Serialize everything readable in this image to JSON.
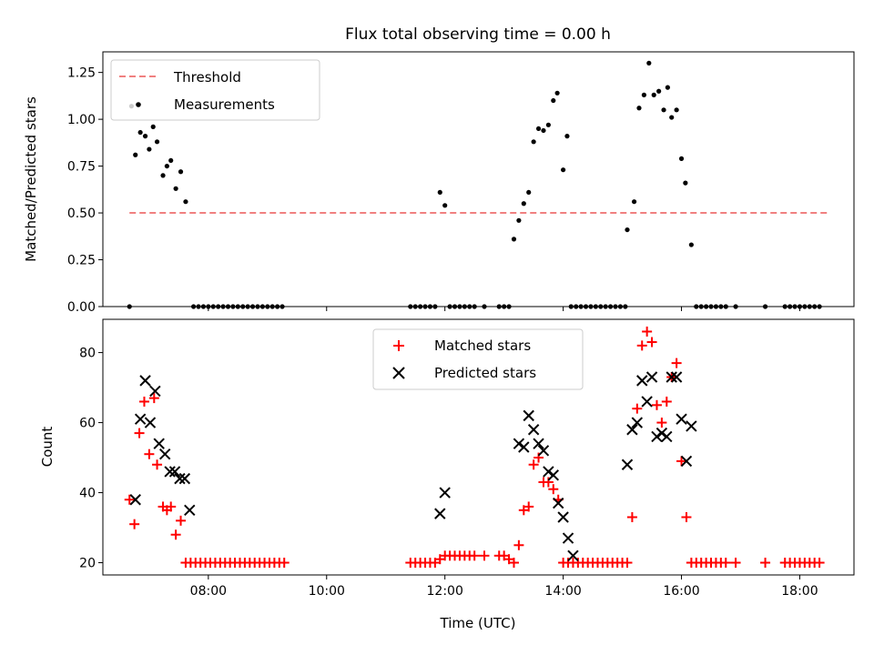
{
  "chart_data": [
    {
      "type": "scatter",
      "title": "Flux total observing time = 0.00 h",
      "xlabel": "",
      "ylabel": "Matched/Predicted stars",
      "ylim": [
        0,
        1.36
      ],
      "xlim": [
        "06:13",
        "18:55"
      ],
      "yticks": [
        "0.00",
        "0.25",
        "0.50",
        "0.75",
        "1.00",
        "1.25"
      ],
      "legend": {
        "placement": "upper-left",
        "entries": [
          "Threshold",
          "Measurements"
        ]
      },
      "threshold": {
        "name": "Threshold",
        "y": 0.5,
        "x_start": "06:40",
        "x_end": "18:30",
        "color": "#f08080"
      },
      "series": [
        {
          "name": "Measurements",
          "color": "#000000",
          "points": [
            [
              "06:40",
              0.0
            ],
            [
              "06:42",
              1.07
            ],
            [
              "06:46",
              0.81
            ],
            [
              "06:51",
              0.93
            ],
            [
              "06:56",
              0.91
            ],
            [
              "07:00",
              0.84
            ],
            [
              "07:04",
              0.96
            ],
            [
              "07:08",
              0.88
            ],
            [
              "07:14",
              0.7
            ],
            [
              "07:18",
              0.75
            ],
            [
              "07:22",
              0.78
            ],
            [
              "07:27",
              0.63
            ],
            [
              "07:32",
              0.72
            ],
            [
              "07:37",
              0.56
            ],
            [
              "07:45",
              0.0
            ],
            [
              "07:50",
              0.0
            ],
            [
              "07:55",
              0.0
            ],
            [
              "08:00",
              0.0
            ],
            [
              "08:05",
              0.0
            ],
            [
              "08:10",
              0.0
            ],
            [
              "08:15",
              0.0
            ],
            [
              "08:20",
              0.0
            ],
            [
              "08:25",
              0.0
            ],
            [
              "08:30",
              0.0
            ],
            [
              "08:35",
              0.0
            ],
            [
              "08:40",
              0.0
            ],
            [
              "08:45",
              0.0
            ],
            [
              "08:50",
              0.0
            ],
            [
              "08:55",
              0.0
            ],
            [
              "09:00",
              0.0
            ],
            [
              "09:05",
              0.0
            ],
            [
              "09:10",
              0.0
            ],
            [
              "09:15",
              0.0
            ],
            [
              "11:25",
              0.0
            ],
            [
              "11:30",
              0.0
            ],
            [
              "11:35",
              0.0
            ],
            [
              "11:40",
              0.0
            ],
            [
              "11:45",
              0.0
            ],
            [
              "11:50",
              0.0
            ],
            [
              "11:55",
              0.61
            ],
            [
              "12:00",
              0.54
            ],
            [
              "12:05",
              0.0
            ],
            [
              "12:10",
              0.0
            ],
            [
              "12:15",
              0.0
            ],
            [
              "12:20",
              0.0
            ],
            [
              "12:25",
              0.0
            ],
            [
              "12:30",
              0.0
            ],
            [
              "12:40",
              0.0
            ],
            [
              "12:55",
              0.0
            ],
            [
              "13:00",
              0.0
            ],
            [
              "13:05",
              0.0
            ],
            [
              "13:10",
              0.36
            ],
            [
              "13:15",
              0.46
            ],
            [
              "13:20",
              0.55
            ],
            [
              "13:25",
              0.61
            ],
            [
              "13:30",
              0.88
            ],
            [
              "13:35",
              0.95
            ],
            [
              "13:40",
              0.94
            ],
            [
              "13:45",
              0.97
            ],
            [
              "13:50",
              1.1
            ],
            [
              "13:54",
              1.14
            ],
            [
              "14:00",
              0.73
            ],
            [
              "14:04",
              0.91
            ],
            [
              "14:08",
              0.0
            ],
            [
              "14:13",
              0.0
            ],
            [
              "14:18",
              0.0
            ],
            [
              "14:23",
              0.0
            ],
            [
              "14:28",
              0.0
            ],
            [
              "14:33",
              0.0
            ],
            [
              "14:38",
              0.0
            ],
            [
              "14:43",
              0.0
            ],
            [
              "14:48",
              0.0
            ],
            [
              "14:53",
              0.0
            ],
            [
              "14:58",
              0.0
            ],
            [
              "15:03",
              0.0
            ],
            [
              "15:05",
              0.41
            ],
            [
              "15:12",
              0.56
            ],
            [
              "15:17",
              1.06
            ],
            [
              "15:22",
              1.13
            ],
            [
              "15:27",
              1.3
            ],
            [
              "15:32",
              1.13
            ],
            [
              "15:37",
              1.15
            ],
            [
              "15:42",
              1.05
            ],
            [
              "15:46",
              1.17
            ],
            [
              "15:50",
              1.01
            ],
            [
              "15:55",
              1.05
            ],
            [
              "16:00",
              0.79
            ],
            [
              "16:04",
              0.66
            ],
            [
              "16:10",
              0.33
            ],
            [
              "16:15",
              0.0
            ],
            [
              "16:20",
              0.0
            ],
            [
              "16:25",
              0.0
            ],
            [
              "16:30",
              0.0
            ],
            [
              "16:35",
              0.0
            ],
            [
              "16:40",
              0.0
            ],
            [
              "16:45",
              0.0
            ],
            [
              "16:55",
              0.0
            ],
            [
              "17:25",
              0.0
            ],
            [
              "17:45",
              0.0
            ],
            [
              "17:50",
              0.0
            ],
            [
              "17:55",
              0.0
            ],
            [
              "18:00",
              0.0
            ],
            [
              "18:05",
              0.0
            ],
            [
              "18:10",
              0.0
            ],
            [
              "18:15",
              0.0
            ],
            [
              "18:20",
              0.0
            ]
          ]
        }
      ]
    },
    {
      "type": "scatter",
      "title": "",
      "xlabel": "Time (UTC)",
      "ylabel": "Count",
      "ylim": [
        16.5,
        89.5
      ],
      "xlim": [
        "06:13",
        "18:55"
      ],
      "xticks": [
        "08:00",
        "10:00",
        "12:00",
        "14:00",
        "16:00",
        "18:00"
      ],
      "yticks": [
        "20",
        "40",
        "60",
        "80"
      ],
      "legend": {
        "placement": "upper-center",
        "entries": [
          "Matched stars",
          "Predicted stars"
        ]
      },
      "series": [
        {
          "name": "Matched stars",
          "marker": "plus",
          "color": "#ff0000",
          "points": [
            [
              "06:40",
              38
            ],
            [
              "06:45",
              31
            ],
            [
              "06:50",
              57
            ],
            [
              "06:55",
              66
            ],
            [
              "07:00",
              51
            ],
            [
              "07:05",
              67
            ],
            [
              "07:08",
              48
            ],
            [
              "07:14",
              36
            ],
            [
              "07:18",
              35
            ],
            [
              "07:22",
              36
            ],
            [
              "07:27",
              28
            ],
            [
              "07:32",
              32
            ],
            [
              "07:37",
              20
            ],
            [
              "07:42",
              20
            ],
            [
              "07:47",
              20
            ],
            [
              "07:52",
              20
            ],
            [
              "07:57",
              20
            ],
            [
              "08:02",
              20
            ],
            [
              "08:07",
              20
            ],
            [
              "08:12",
              20
            ],
            [
              "08:17",
              20
            ],
            [
              "08:22",
              20
            ],
            [
              "08:27",
              20
            ],
            [
              "08:32",
              20
            ],
            [
              "08:37",
              20
            ],
            [
              "08:42",
              20
            ],
            [
              "08:47",
              20
            ],
            [
              "08:52",
              20
            ],
            [
              "08:57",
              20
            ],
            [
              "09:02",
              20
            ],
            [
              "09:07",
              20
            ],
            [
              "09:12",
              20
            ],
            [
              "09:17",
              20
            ],
            [
              "11:25",
              20
            ],
            [
              "11:30",
              20
            ],
            [
              "11:35",
              20
            ],
            [
              "11:40",
              20
            ],
            [
              "11:45",
              20
            ],
            [
              "11:50",
              20
            ],
            [
              "11:55",
              21
            ],
            [
              "12:00",
              22
            ],
            [
              "12:05",
              22
            ],
            [
              "12:10",
              22
            ],
            [
              "12:15",
              22
            ],
            [
              "12:20",
              22
            ],
            [
              "12:25",
              22
            ],
            [
              "12:30",
              22
            ],
            [
              "12:40",
              22
            ],
            [
              "12:55",
              22
            ],
            [
              "13:00",
              22
            ],
            [
              "13:05",
              21
            ],
            [
              "13:10",
              20
            ],
            [
              "13:15",
              25
            ],
            [
              "13:20",
              35
            ],
            [
              "13:25",
              36
            ],
            [
              "13:30",
              48
            ],
            [
              "13:35",
              50
            ],
            [
              "13:40",
              43
            ],
            [
              "13:45",
              43
            ],
            [
              "13:50",
              41
            ],
            [
              "13:55",
              38
            ],
            [
              "14:00",
              20
            ],
            [
              "14:05",
              20
            ],
            [
              "14:10",
              20
            ],
            [
              "14:15",
              20
            ],
            [
              "14:20",
              20
            ],
            [
              "14:25",
              20
            ],
            [
              "14:30",
              20
            ],
            [
              "14:35",
              20
            ],
            [
              "14:40",
              20
            ],
            [
              "14:45",
              20
            ],
            [
              "14:50",
              20
            ],
            [
              "14:55",
              20
            ],
            [
              "15:00",
              20
            ],
            [
              "15:05",
              20
            ],
            [
              "15:10",
              33
            ],
            [
              "15:15",
              64
            ],
            [
              "15:20",
              82
            ],
            [
              "15:25",
              86
            ],
            [
              "15:30",
              83
            ],
            [
              "15:35",
              65
            ],
            [
              "15:40",
              60
            ],
            [
              "15:45",
              66
            ],
            [
              "15:50",
              73
            ],
            [
              "15:55",
              77
            ],
            [
              "16:00",
              49
            ],
            [
              "16:05",
              33
            ],
            [
              "16:10",
              20
            ],
            [
              "16:15",
              20
            ],
            [
              "16:20",
              20
            ],
            [
              "16:25",
              20
            ],
            [
              "16:30",
              20
            ],
            [
              "16:35",
              20
            ],
            [
              "16:40",
              20
            ],
            [
              "16:45",
              20
            ],
            [
              "16:55",
              20
            ],
            [
              "17:25",
              20
            ],
            [
              "17:45",
              20
            ],
            [
              "17:50",
              20
            ],
            [
              "17:55",
              20
            ],
            [
              "18:00",
              20
            ],
            [
              "18:05",
              20
            ],
            [
              "18:10",
              20
            ],
            [
              "18:15",
              20
            ],
            [
              "18:20",
              20
            ]
          ]
        },
        {
          "name": "Predicted stars",
          "marker": "x",
          "color": "#000000",
          "points": [
            [
              "06:46",
              38
            ],
            [
              "06:51",
              61
            ],
            [
              "06:56",
              72
            ],
            [
              "07:01",
              60
            ],
            [
              "07:06",
              69
            ],
            [
              "07:10",
              54
            ],
            [
              "07:16",
              51
            ],
            [
              "07:21",
              46
            ],
            [
              "07:26",
              46
            ],
            [
              "07:31",
              44
            ],
            [
              "07:36",
              44
            ],
            [
              "07:41",
              35
            ],
            [
              "11:55",
              34
            ],
            [
              "12:00",
              40
            ],
            [
              "13:15",
              54
            ],
            [
              "13:20",
              53
            ],
            [
              "13:25",
              62
            ],
            [
              "13:30",
              58
            ],
            [
              "13:35",
              54
            ],
            [
              "13:40",
              52
            ],
            [
              "13:45",
              46
            ],
            [
              "13:50",
              45
            ],
            [
              "13:55",
              37
            ],
            [
              "14:00",
              33
            ],
            [
              "14:05",
              27
            ],
            [
              "14:10",
              22
            ],
            [
              "15:05",
              48
            ],
            [
              "15:10",
              58
            ],
            [
              "15:15",
              60
            ],
            [
              "15:20",
              72
            ],
            [
              "15:25",
              66
            ],
            [
              "15:30",
              73
            ],
            [
              "15:35",
              56
            ],
            [
              "15:40",
              57
            ],
            [
              "15:45",
              56
            ],
            [
              "15:50",
              73
            ],
            [
              "15:55",
              73
            ],
            [
              "16:00",
              61
            ],
            [
              "16:05",
              49
            ],
            [
              "16:10",
              59
            ]
          ]
        }
      ]
    }
  ]
}
